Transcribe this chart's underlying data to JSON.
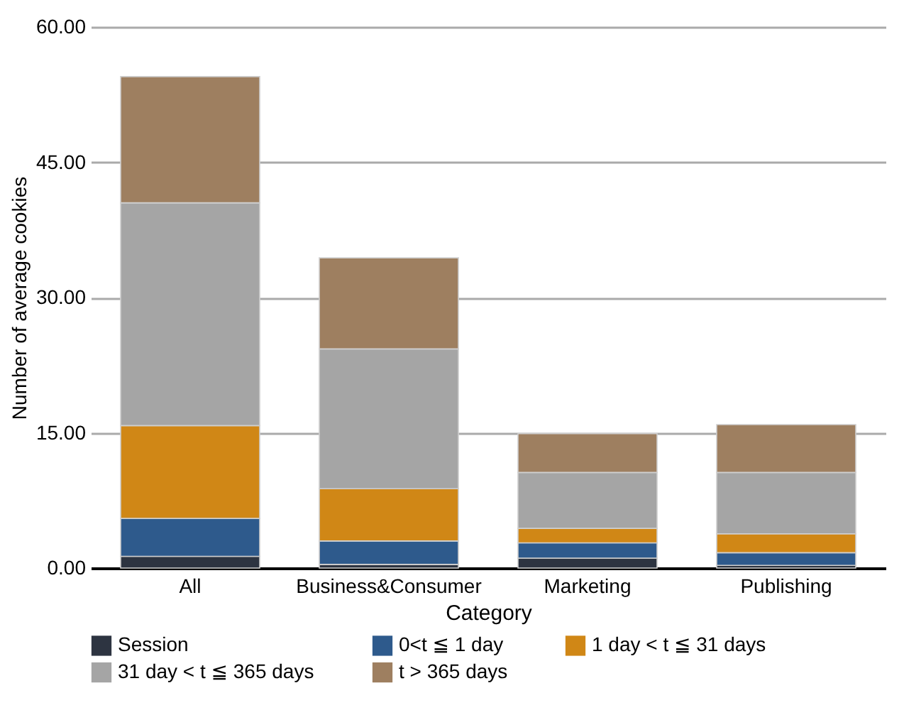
{
  "chart_data": {
    "type": "bar",
    "stacked": true,
    "xlabel": "Category",
    "ylabel": "Number of average cookies",
    "categories": [
      "All",
      "Business&Consumer",
      "Marketing",
      "Publishing"
    ],
    "series": [
      {
        "name": "Session",
        "color": "#2d3441",
        "values": [
          1.3,
          0.4,
          1.1,
          0.3
        ]
      },
      {
        "name": "0<t ≦ 1 day",
        "color": "#2e5a8c",
        "values": [
          4.2,
          2.6,
          1.7,
          1.4
        ]
      },
      {
        "name": "1 day < t ≦ 31 days",
        "color": "#d08716",
        "values": [
          10.3,
          5.8,
          1.6,
          2.1
        ]
      },
      {
        "name": "31 day < t ≦ 365 days",
        "color": "#a5a5a5",
        "values": [
          24.7,
          15.5,
          6.2,
          6.8
        ]
      },
      {
        "name": "t > 365 days",
        "color": "#9e7f60",
        "values": [
          14.0,
          10.1,
          4.3,
          5.3
        ]
      }
    ],
    "ylim": [
      0,
      60
    ],
    "yticks": [
      {
        "value": 0,
        "label": "0.00"
      },
      {
        "value": 15,
        "label": "15.00"
      },
      {
        "value": 30,
        "label": "30.00"
      },
      {
        "value": 45,
        "label": "45.00"
      },
      {
        "value": 60,
        "label": "60.00"
      }
    ],
    "grid": "y",
    "legend": "bottom"
  }
}
